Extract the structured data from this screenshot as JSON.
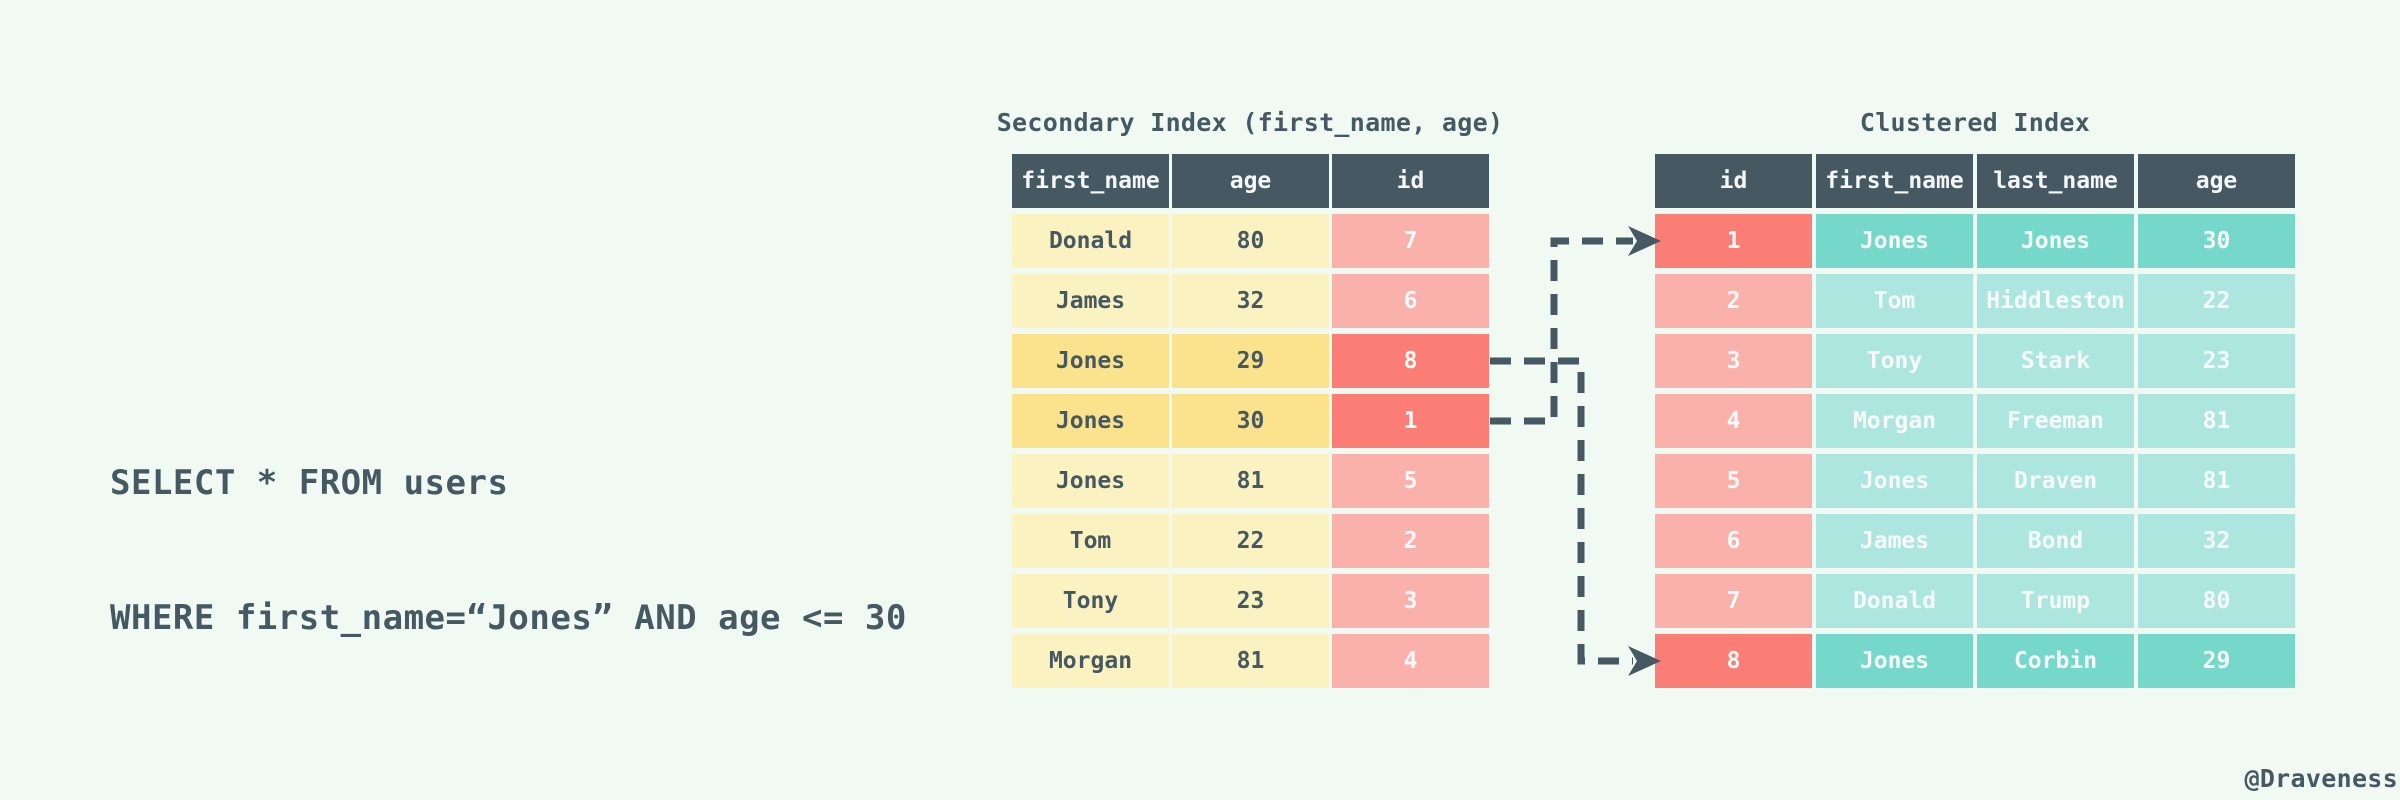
{
  "query": {
    "line1": "SELECT * FROM users",
    "line2": "WHERE first_name=“Jones” AND age <= 30"
  },
  "secondary_index": {
    "title": "Secondary Index (first_name, age)",
    "columns": [
      "first_name",
      "age",
      "id"
    ],
    "rows": [
      {
        "first_name": "Donald",
        "age": "80",
        "id": "7",
        "highlight": false
      },
      {
        "first_name": "James",
        "age": "32",
        "id": "6",
        "highlight": false
      },
      {
        "first_name": "Jones",
        "age": "29",
        "id": "8",
        "highlight": true
      },
      {
        "first_name": "Jones",
        "age": "30",
        "id": "1",
        "highlight": true
      },
      {
        "first_name": "Jones",
        "age": "81",
        "id": "5",
        "highlight": false
      },
      {
        "first_name": "Tom",
        "age": "22",
        "id": "2",
        "highlight": false
      },
      {
        "first_name": "Tony",
        "age": "23",
        "id": "3",
        "highlight": false
      },
      {
        "first_name": "Morgan",
        "age": "81",
        "id": "4",
        "highlight": false
      }
    ]
  },
  "clustered_index": {
    "title": "Clustered Index",
    "columns": [
      "id",
      "first_name",
      "last_name",
      "age"
    ],
    "rows": [
      {
        "id": "1",
        "first_name": "Jones",
        "last_name": "Jones",
        "age": "30",
        "highlight": true
      },
      {
        "id": "2",
        "first_name": "Tom",
        "last_name": "Hiddleston",
        "age": "22",
        "highlight": false
      },
      {
        "id": "3",
        "first_name": "Tony",
        "last_name": "Stark",
        "age": "23",
        "highlight": false
      },
      {
        "id": "4",
        "first_name": "Morgan",
        "last_name": "Freeman",
        "age": "81",
        "highlight": false
      },
      {
        "id": "5",
        "first_name": "Jones",
        "last_name": "Draven",
        "age": "81",
        "highlight": false
      },
      {
        "id": "6",
        "first_name": "James",
        "last_name": "Bond",
        "age": "32",
        "highlight": false
      },
      {
        "id": "7",
        "first_name": "Donald",
        "last_name": "Trump",
        "age": "80",
        "highlight": false
      },
      {
        "id": "8",
        "first_name": "Jones",
        "last_name": "Corbin",
        "age": "29",
        "highlight": true
      }
    ]
  },
  "credit": "@Draveness",
  "colors": {
    "background": "#F0FAF2",
    "slate": "#465862",
    "header_text": "#F4F7F7",
    "yellow": "#FAF2C0",
    "yellow_highlight": "#FBE38E",
    "pink": "#FAB0AB",
    "salmon_highlight": "#FA7E76",
    "teal": "#ADE6DE",
    "teal_highlight": "#76D8CA",
    "cell_text_light": "#F7FBFA"
  }
}
